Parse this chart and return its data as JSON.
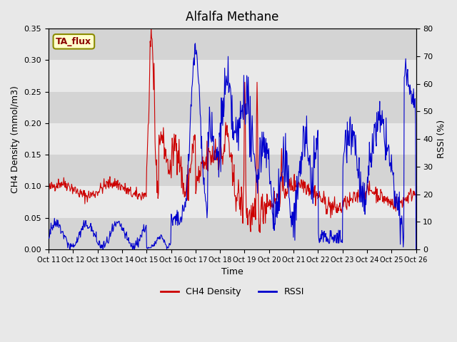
{
  "title": "Alfalfa Methane",
  "xlabel": "Time",
  "ylabel_left": "CH4 Density (mmol/m3)",
  "ylabel_right": "RSSI (%)",
  "ylim_left": [
    0,
    0.35
  ],
  "ylim_right": [
    0,
    80
  ],
  "yticks_left": [
    0.0,
    0.05,
    0.1,
    0.15,
    0.2,
    0.25,
    0.3,
    0.35
  ],
  "yticks_right": [
    0,
    10,
    20,
    30,
    40,
    50,
    60,
    70,
    80
  ],
  "annotation_text": "TA_flux",
  "annotation_color": "#8B0000",
  "annotation_bg": "#FFFFCC",
  "line_color_ch4": "#CC0000",
  "line_color_rssi": "#0000CC",
  "background_color": "#E8E8E8",
  "legend_ch4": "CH4 Density",
  "legend_rssi": "RSSI",
  "xtick_labels": [
    "Oct 11",
    "Oct 12",
    "Oct 13",
    "Oct 14",
    "Oct 15",
    "Oct 16",
    "Oct 17",
    "Oct 18",
    "Oct 19",
    "Oct 20",
    "Oct 21",
    "Oct 22",
    "Oct 23",
    "Oct 24",
    "Oct 25",
    "Oct 26"
  ]
}
